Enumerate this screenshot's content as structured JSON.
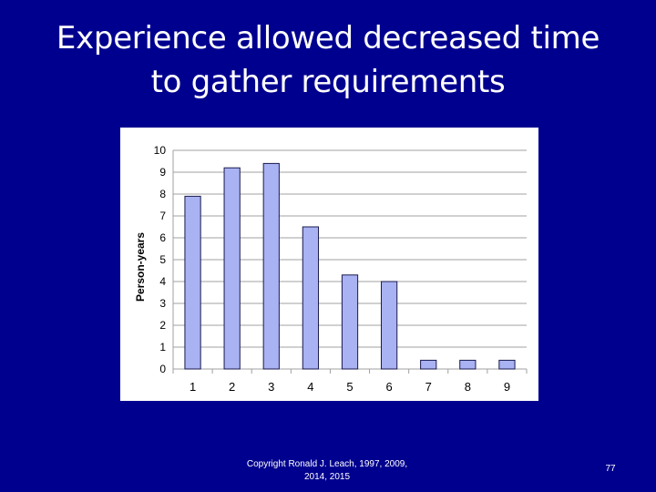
{
  "slide": {
    "title_line1": "Experience allowed decreased time",
    "title_line2": "to gather requirements",
    "footer_line1": "Copyright Ronald J. Leach, 1997, 2009,",
    "footer_line2": "2014, 2015",
    "page_number": "77"
  },
  "chart_data": {
    "type": "bar",
    "title": "",
    "xlabel": "",
    "ylabel": "Person-years",
    "categories": [
      "1",
      "2",
      "3",
      "4",
      "5",
      "6",
      "7",
      "8",
      "9"
    ],
    "values": [
      7.9,
      9.2,
      9.4,
      6.5,
      4.3,
      4.0,
      0.4,
      0.4,
      0.4
    ],
    "ylim": [
      0,
      10
    ],
    "yticks": [
      "0",
      "1",
      "2",
      "3",
      "4",
      "5",
      "6",
      "7",
      "8",
      "9",
      "10"
    ],
    "grid": true,
    "legend": "none",
    "colors": {
      "bar_fill": "#a9b2f2",
      "bar_stroke": "#1a1a4d",
      "grid": "#a0a0a0",
      "axis_text": "#000000"
    }
  }
}
